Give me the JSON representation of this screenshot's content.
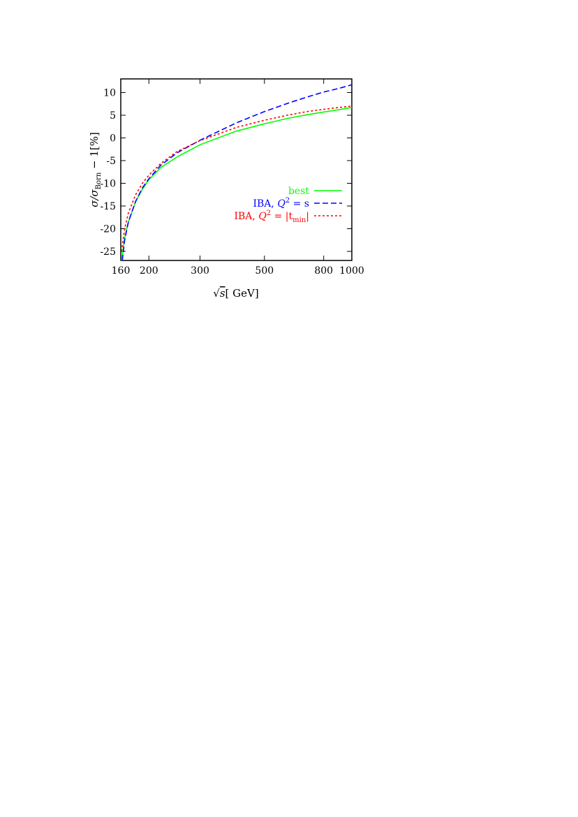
{
  "chart_data": {
    "type": "line",
    "xlabel": "√s [ GeV]",
    "ylabel": "σ/σBorn − 1[%]",
    "x_scale": "log",
    "xlim": [
      160,
      1000
    ],
    "ylim": [
      -27,
      13
    ],
    "x_ticks": [
      160,
      200,
      300,
      500,
      800,
      1000
    ],
    "x_tick_labels": [
      "160",
      "200",
      "300",
      "500",
      "800",
      "1000"
    ],
    "y_ticks": [
      10,
      5,
      0,
      -5,
      -10,
      -15,
      -20,
      -25
    ],
    "y_tick_labels": [
      "10",
      "5",
      "0",
      "-5",
      "-10",
      "-15",
      "-20",
      "-25"
    ],
    "grid": false,
    "legend_position": "right",
    "series": [
      {
        "name": "best",
        "color": "#00ff00",
        "dash": "solid",
        "x": [
          161,
          165,
          170,
          180,
          190,
          200,
          220,
          250,
          300,
          400,
          500,
          600,
          700,
          800,
          900,
          1000
        ],
        "y": [
          -27,
          -22,
          -18.5,
          -14,
          -11.3,
          -9.2,
          -6.5,
          -4.2,
          -1.5,
          1.5,
          3.1,
          4.3,
          5.1,
          5.7,
          6.2,
          6.7
        ]
      },
      {
        "name": "IBA, Q² = s",
        "color": "#0000ff",
        "dash": "dashed",
        "x": [
          162,
          165,
          170,
          180,
          190,
          200,
          220,
          250,
          300,
          400,
          500,
          600,
          700,
          800,
          900,
          1000
        ],
        "y": [
          -27,
          -22.5,
          -18.5,
          -14,
          -11,
          -9,
          -6,
          -3.3,
          -0.5,
          3.3,
          5.8,
          7.6,
          9,
          10.1,
          10.9,
          11.7
        ]
      },
      {
        "name": "IBA, Q² = |tmin|",
        "color": "#ff0000",
        "dash": "dotted",
        "x": [
          161,
          165,
          170,
          180,
          190,
          200,
          220,
          250,
          300,
          400,
          500,
          600,
          700,
          800,
          900,
          1000
        ],
        "y": [
          -25,
          -20,
          -16.5,
          -12.5,
          -10,
          -8.2,
          -5.6,
          -3,
          -0.6,
          2.3,
          3.9,
          5,
          5.8,
          6.3,
          6.7,
          7
        ]
      }
    ],
    "legend_entries": [
      {
        "prefix": "best",
        "main": "",
        "sup": "",
        "mid": "",
        "sub": "",
        "post": "",
        "color": "#00ff00",
        "dash": "solid"
      },
      {
        "prefix": "IBA, ",
        "main": "Q",
        "sup": "2",
        "mid": " = s",
        "sub": "",
        "post": "",
        "color": "#0000ff",
        "dash": "dashed"
      },
      {
        "prefix": "IBA, ",
        "main": "Q",
        "sup": "2",
        "mid": " = |t",
        "sub": "min",
        "post": "|",
        "color": "#ff0000",
        "dash": "dotted"
      }
    ],
    "axis_label_parts": {
      "x_root": "s",
      "x_unit": "[ GeV]",
      "y_sigma": "σ/σ",
      "y_sub": "Born",
      "y_rest": " − 1[%]"
    }
  }
}
